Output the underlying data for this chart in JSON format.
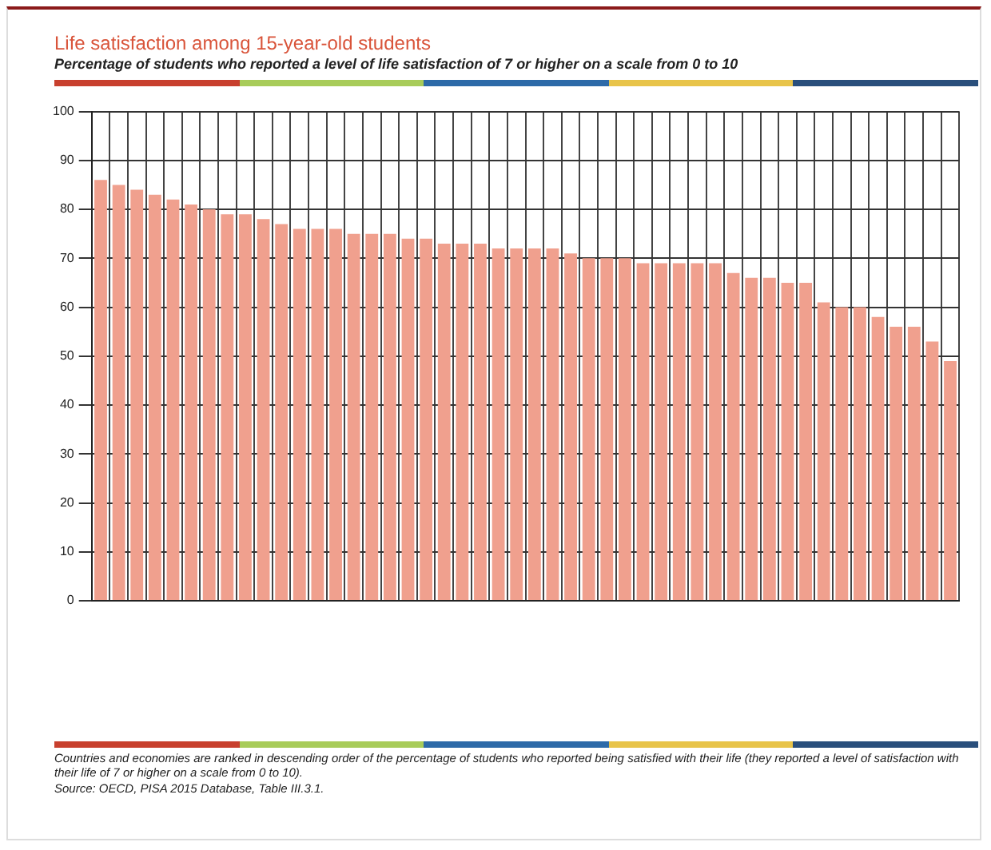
{
  "chart_data": {
    "type": "bar",
    "title": "Life satisfaction among 15-year-old students",
    "subtitle": "Percentage of students who reported a level of life satisfaction of 7 or higher on a scale from 0 to 10",
    "categories": [
      null,
      null,
      null,
      null,
      null,
      null,
      null,
      null,
      null,
      null,
      null,
      null,
      null,
      null,
      null,
      null,
      null,
      null,
      null,
      null,
      null,
      null,
      null,
      null,
      null,
      null,
      null,
      null,
      null,
      null,
      null,
      null,
      null,
      null,
      null,
      null,
      null,
      null,
      null,
      null,
      null,
      null,
      null,
      null,
      null,
      null,
      null,
      null
    ],
    "values": [
      86,
      85,
      84,
      83,
      82,
      81,
      80,
      79,
      79,
      78,
      77,
      76,
      76,
      76,
      75,
      75,
      75,
      74,
      74,
      73,
      73,
      73,
      72,
      72,
      72,
      72,
      71,
      70,
      70,
      70,
      69,
      69,
      69,
      69,
      69,
      67,
      66,
      66,
      65,
      65,
      61,
      60,
      60,
      58,
      56,
      56,
      53,
      49
    ],
    "color": "#f0a08e",
    "ylim": [
      0,
      100
    ],
    "yticks": [
      0,
      10,
      20,
      30,
      40,
      50,
      60,
      70,
      80,
      90,
      100
    ],
    "grid": true,
    "annotations": [
      "Countries and economies are ranked in descending order of the percentage of students who reported being satisfied with their life (they reported a level of satisfaction with their life of 7 or higher on a scale from 0 to 10).",
      "Source: OECD, PISA 2015 Database, Table III.3.1."
    ]
  }
}
